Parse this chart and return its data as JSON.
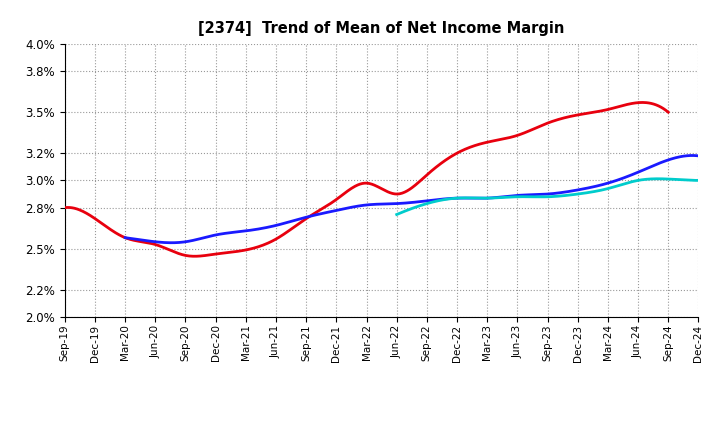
{
  "title": "[2374]  Trend of Mean of Net Income Margin",
  "x_labels": [
    "Sep-19",
    "Dec-19",
    "Mar-20",
    "Jun-20",
    "Sep-20",
    "Dec-20",
    "Mar-21",
    "Jun-21",
    "Sep-21",
    "Dec-21",
    "Mar-22",
    "Jun-22",
    "Sep-22",
    "Dec-22",
    "Mar-23",
    "Jun-23",
    "Sep-23",
    "Dec-23",
    "Mar-24",
    "Jun-24",
    "Sep-24",
    "Dec-24"
  ],
  "ylim": [
    0.02,
    0.04
  ],
  "yticks": [
    0.04,
    0.038,
    0.035,
    0.032,
    0.03,
    0.028,
    0.025,
    0.022,
    0.02
  ],
  "y3_values": [
    2.8,
    2.72,
    2.58,
    2.53,
    2.45,
    2.46,
    2.49,
    2.57,
    2.72,
    2.86,
    2.98,
    2.9,
    3.04,
    3.2,
    3.28,
    3.33,
    3.42,
    3.48,
    3.52,
    3.57,
    3.5,
    null
  ],
  "y5_values": [
    null,
    null,
    2.58,
    2.55,
    2.55,
    2.6,
    2.63,
    2.67,
    2.73,
    2.78,
    2.82,
    2.83,
    2.85,
    2.87,
    2.87,
    2.89,
    2.9,
    2.93,
    2.98,
    3.06,
    3.15,
    3.18
  ],
  "y7_values": [
    null,
    null,
    null,
    null,
    null,
    null,
    null,
    null,
    null,
    null,
    null,
    2.75,
    2.83,
    2.87,
    2.87,
    2.88,
    2.88,
    2.9,
    2.94,
    3.0,
    3.01,
    3.0
  ],
  "y10_values": [
    null,
    null,
    null,
    null,
    null,
    null,
    null,
    null,
    null,
    null,
    null,
    null,
    null,
    null,
    null,
    null,
    null,
    null,
    null,
    null,
    null,
    null
  ],
  "color_3y": "#e8000e",
  "color_5y": "#1a1aff",
  "color_7y": "#00cccc",
  "color_10y": "#009900",
  "linewidth": 2.0,
  "background_color": "#ffffff",
  "grid_color": "#999999"
}
